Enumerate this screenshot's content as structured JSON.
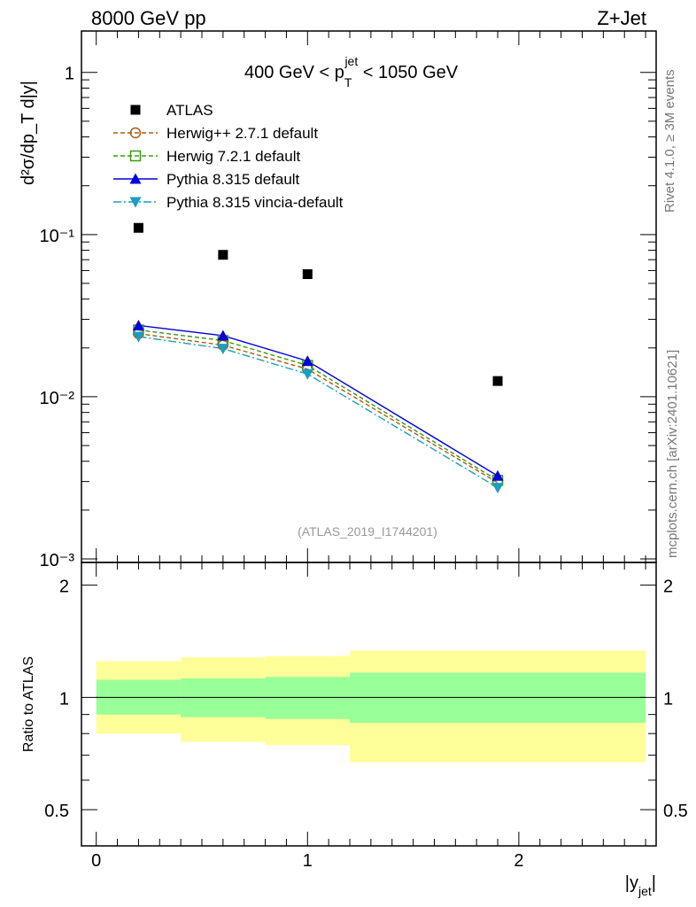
{
  "header": {
    "left": "8000 GeV pp",
    "right": "Z+Jet"
  },
  "side_text": {
    "rivet": "Rivet 4.1.0, ≥ 3M events",
    "mcplots": "mcplots.cern.ch [arXiv:2401.10621]"
  },
  "analysis_label": "(ATLAS_2019_I1744201)",
  "chart_data": [
    {
      "type": "scatter",
      "title": "400 GeV < p_T^jet < 1050 GeV",
      "title_parts": {
        "pre": "400 GeV < p",
        "sub": "T",
        "sup": "jet",
        "post": " < 1050 GeV"
      },
      "ylabel": "d²σ/dp_T d|y|",
      "yscale": "log",
      "ylim": [
        0.001,
        1.8
      ],
      "xlim": [
        -0.07,
        2.65
      ],
      "y_tick_labels": [
        "10⁻³",
        "10⁻²",
        "10⁻¹",
        "1"
      ],
      "x": [
        0.2,
        0.6,
        1.0,
        1.9
      ],
      "series": [
        {
          "name": "ATLAS",
          "marker": "square-filled",
          "color": "#000000",
          "line": "none",
          "values": [
            0.11,
            0.075,
            0.057,
            0.0125
          ]
        },
        {
          "name": "Herwig++ 2.7.1 default",
          "marker": "circle-open",
          "color": "#b05a10",
          "line": "dashed",
          "values": [
            0.0245,
            0.0208,
            0.0148,
            0.00295
          ]
        },
        {
          "name": "Herwig 7.2.1 default",
          "marker": "square-open",
          "color": "#3a9a10",
          "line": "dashed",
          "values": [
            0.0258,
            0.0222,
            0.0156,
            0.00305
          ]
        },
        {
          "name": "Pythia 8.315 default",
          "marker": "triangle-up-filled",
          "color": "#0000dd",
          "line": "solid",
          "values": [
            0.0275,
            0.0238,
            0.0166,
            0.00325
          ]
        },
        {
          "name": "Pythia 8.315 vincia-default",
          "marker": "triangle-down-filled",
          "color": "#1a9ec2",
          "line": "dashdot",
          "values": [
            0.0235,
            0.0198,
            0.0138,
            0.00275
          ]
        }
      ]
    },
    {
      "type": "area",
      "ylabel": "Ratio to ATLAS",
      "xlabel": "|y_jet|",
      "xlabel_parts": {
        "pre": "|y",
        "sub": "jet",
        "post": "|"
      },
      "ylim": [
        0.4,
        2.3
      ],
      "xlim": [
        -0.07,
        2.65
      ],
      "x_tick_labels": [
        "0",
        "1",
        "2"
      ],
      "y_tick_labels": [
        "0.5",
        "1",
        "2"
      ],
      "bin_edges": [
        0.0,
        0.4,
        0.8,
        1.2,
        2.6
      ],
      "outer_band": {
        "color": "#ffff99",
        "low": [
          0.8,
          0.76,
          0.745,
          0.67
        ],
        "high": [
          1.25,
          1.28,
          1.29,
          1.335
        ]
      },
      "inner_band": {
        "color": "#99ff99",
        "low": [
          0.9,
          0.885,
          0.875,
          0.855
        ],
        "high": [
          1.115,
          1.125,
          1.135,
          1.165
        ]
      },
      "reference_line": 1.0
    }
  ]
}
